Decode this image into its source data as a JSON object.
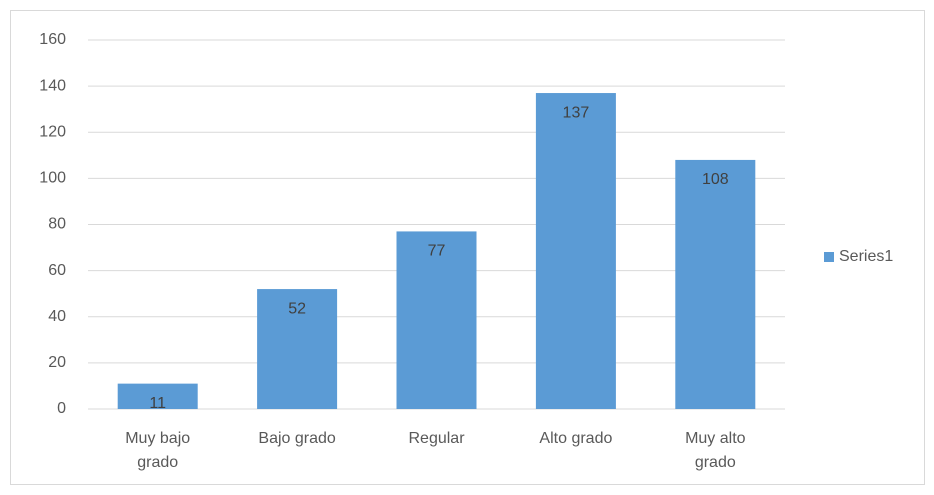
{
  "chart_data": {
    "type": "bar",
    "categories": [
      "Muy bajo grado",
      "Bajo grado",
      "Regular",
      "Alto grado",
      "Muy alto grado"
    ],
    "series": [
      {
        "name": "Series1",
        "color": "#5b9bd5",
        "values": [
          11,
          52,
          77,
          137,
          108
        ]
      }
    ],
    "ylim": [
      0,
      160
    ],
    "yticks": [
      0,
      20,
      40,
      60,
      80,
      100,
      120,
      140,
      160
    ],
    "grid": true,
    "legend": "right"
  }
}
